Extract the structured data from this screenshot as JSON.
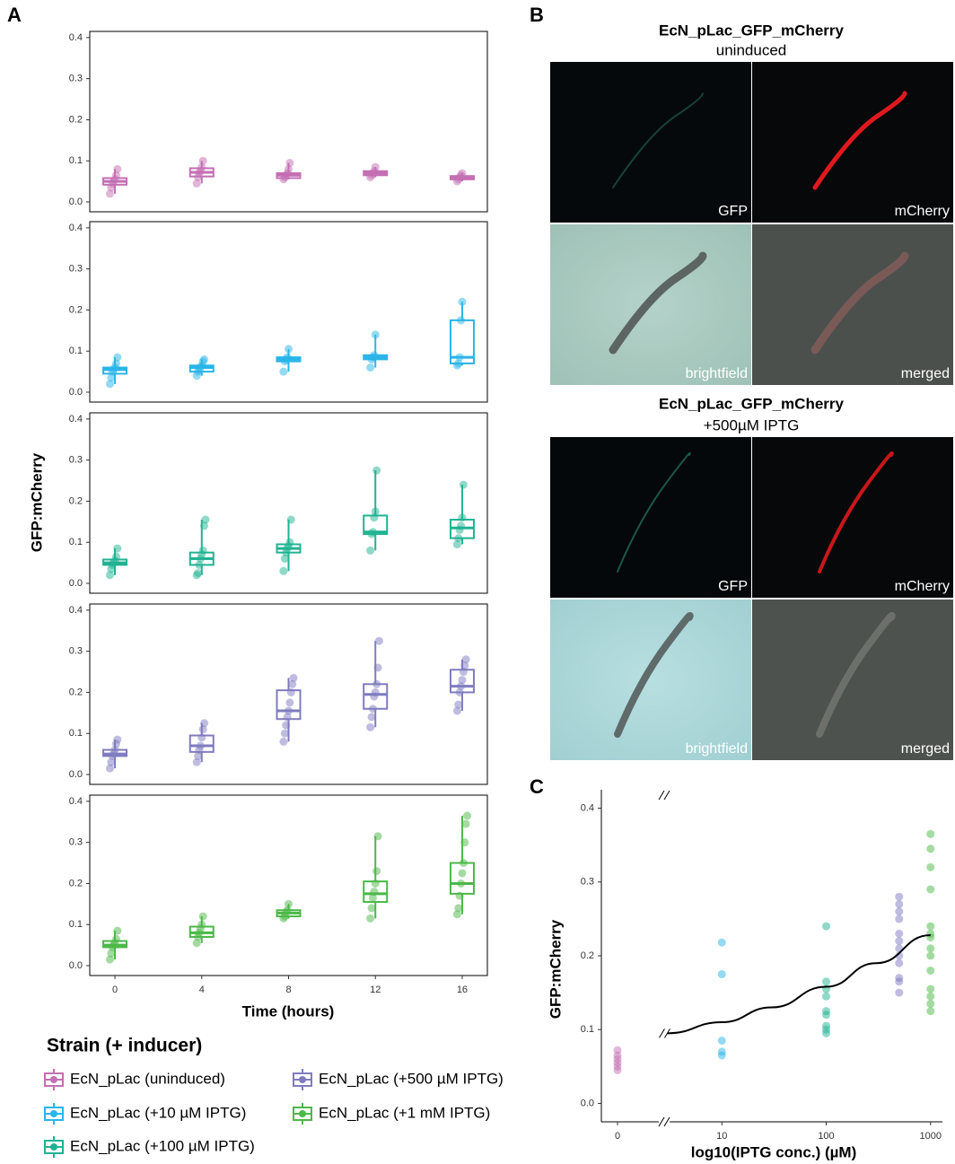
{
  "panel_labels": [
    "A",
    "B",
    "C"
  ],
  "panel_a": {
    "y_label": "GFP:mCherry",
    "x_label": "Time (hours)",
    "legend_title": "Strain (+ inducer)"
  },
  "panel_b": {
    "groups": [
      {
        "title": "EcN_pLac_GFP_mCherry",
        "subtitle": "uninduced",
        "channels": [
          "GFP",
          "mCherry",
          "brightfield",
          "merged"
        ]
      },
      {
        "title": "EcN_pLac_GFP_mCherry",
        "subtitle": "+500µM IPTG",
        "channels": [
          "GFP",
          "mCherry",
          "brightfield",
          "merged"
        ]
      }
    ]
  },
  "chart_data": [
    {
      "type": "box",
      "x": [
        0,
        4,
        8,
        12,
        16
      ],
      "xlim": [
        -1.16,
        17.16
      ],
      "ylim": [
        -0.024,
        0.415
      ],
      "yticks": [
        {
          "value": 0,
          "label": "0.0"
        },
        0.1,
        0.2,
        0.3,
        0.4
      ],
      "series": [
        {
          "name": "EcN_pLac (uninduced)",
          "color": "#c46fb3",
          "boxes": [
            {
              "low": 0.02,
              "q1": 0.042,
              "median": 0.05,
              "q3": 0.058,
              "high": 0.08
            },
            {
              "low": 0.045,
              "q1": 0.062,
              "median": 0.072,
              "q3": 0.082,
              "high": 0.1
            },
            {
              "low": 0.055,
              "q1": 0.058,
              "median": 0.065,
              "q3": 0.07,
              "high": 0.095
            },
            {
              "low": 0.06,
              "q1": 0.065,
              "median": 0.07,
              "q3": 0.075,
              "high": 0.085
            },
            {
              "low": 0.05,
              "q1": 0.055,
              "median": 0.06,
              "q3": 0.063,
              "high": 0.07
            }
          ],
          "points": [
            [
              0.02,
              0.035,
              0.045,
              0.05,
              0.055,
              0.065,
              0.08
            ],
            [
              0.045,
              0.06,
              0.07,
              0.075,
              0.085,
              0.1
            ],
            [
              0.055,
              0.06,
              0.065,
              0.07,
              0.08,
              0.095
            ],
            [
              0.06,
              0.065,
              0.07,
              0.075,
              0.085
            ],
            [
              0.05,
              0.055,
              0.06,
              0.065,
              0.07
            ]
          ]
        }
      ]
    },
    {
      "type": "box",
      "x": [
        0,
        4,
        8,
        12,
        16
      ],
      "xlim": [
        -1.16,
        17.16
      ],
      "ylim": [
        -0.024,
        0.415
      ],
      "yticks": [
        {
          "value": 0,
          "label": "0.0"
        },
        0.1,
        0.2,
        0.3,
        0.4
      ],
      "series": [
        {
          "name": "EcN_pLac (+10 µM IPTG)",
          "color": "#2ab5e8",
          "boxes": [
            {
              "low": 0.02,
              "q1": 0.045,
              "median": 0.055,
              "q3": 0.06,
              "high": 0.085
            },
            {
              "low": 0.04,
              "q1": 0.05,
              "median": 0.06,
              "q3": 0.065,
              "high": 0.08
            },
            {
              "low": 0.05,
              "q1": 0.075,
              "median": 0.08,
              "q3": 0.085,
              "high": 0.105
            },
            {
              "low": 0.06,
              "q1": 0.08,
              "median": 0.085,
              "q3": 0.09,
              "high": 0.14
            },
            {
              "low": 0.065,
              "q1": 0.07,
              "median": 0.085,
              "q3": 0.175,
              "high": 0.22
            }
          ],
          "points": [
            [
              0.02,
              0.035,
              0.05,
              0.055,
              0.06,
              0.07,
              0.085
            ],
            [
              0.04,
              0.05,
              0.055,
              0.06,
              0.065,
              0.075,
              0.08
            ],
            [
              0.05,
              0.075,
              0.08,
              0.085,
              0.105
            ],
            [
              0.06,
              0.08,
              0.085,
              0.09,
              0.14
            ],
            [
              0.065,
              0.07,
              0.085,
              0.175,
              0.22
            ]
          ]
        }
      ]
    },
    {
      "type": "box",
      "x": [
        0,
        4,
        8,
        12,
        16
      ],
      "xlim": [
        -1.16,
        17.16
      ],
      "ylim": [
        -0.024,
        0.415
      ],
      "yticks": [
        {
          "value": 0,
          "label": "0.0"
        },
        0.1,
        0.2,
        0.3,
        0.4
      ],
      "series": [
        {
          "name": "EcN_pLac (+100 µM IPTG)",
          "color": "#20b392",
          "boxes": [
            {
              "low": 0.02,
              "q1": 0.045,
              "median": 0.05,
              "q3": 0.058,
              "high": 0.085
            },
            {
              "low": 0.02,
              "q1": 0.045,
              "median": 0.06,
              "q3": 0.075,
              "high": 0.155
            },
            {
              "low": 0.03,
              "q1": 0.075,
              "median": 0.085,
              "q3": 0.095,
              "high": 0.155
            },
            {
              "low": 0.08,
              "q1": 0.12,
              "median": 0.125,
              "q3": 0.165,
              "high": 0.275
            },
            {
              "low": 0.095,
              "q1": 0.11,
              "median": 0.135,
              "q3": 0.155,
              "high": 0.24
            }
          ],
          "points": [
            [
              0.02,
              0.035,
              0.045,
              0.05,
              0.055,
              0.065,
              0.085
            ],
            [
              0.02,
              0.025,
              0.045,
              0.06,
              0.07,
              0.08,
              0.14,
              0.155
            ],
            [
              0.03,
              0.06,
              0.075,
              0.085,
              0.09,
              0.1,
              0.155
            ],
            [
              0.08,
              0.12,
              0.125,
              0.16,
              0.175,
              0.275
            ],
            [
              0.095,
              0.11,
              0.13,
              0.14,
              0.16,
              0.24
            ]
          ]
        }
      ]
    },
    {
      "type": "box",
      "x": [
        0,
        4,
        8,
        12,
        16
      ],
      "xlim": [
        -1.16,
        17.16
      ],
      "ylim": [
        -0.024,
        0.415
      ],
      "yticks": [
        {
          "value": 0,
          "label": "0.0"
        },
        0.1,
        0.2,
        0.3,
        0.4
      ],
      "series": [
        {
          "name": "EcN_pLac (+500 µM IPTG)",
          "color": "#7f7cbf",
          "boxes": [
            {
              "low": 0.015,
              "q1": 0.045,
              "median": 0.05,
              "q3": 0.06,
              "high": 0.085
            },
            {
              "low": 0.03,
              "q1": 0.055,
              "median": 0.07,
              "q3": 0.095,
              "high": 0.125
            },
            {
              "low": 0.08,
              "q1": 0.135,
              "median": 0.155,
              "q3": 0.205,
              "high": 0.235
            },
            {
              "low": 0.115,
              "q1": 0.16,
              "median": 0.195,
              "q3": 0.22,
              "high": 0.325
            },
            {
              "low": 0.155,
              "q1": 0.2,
              "median": 0.215,
              "q3": 0.255,
              "high": 0.28
            }
          ],
          "points": [
            [
              0.015,
              0.03,
              0.045,
              0.05,
              0.06,
              0.075,
              0.085
            ],
            [
              0.03,
              0.045,
              0.06,
              0.07,
              0.09,
              0.11,
              0.125
            ],
            [
              0.08,
              0.1,
              0.12,
              0.14,
              0.155,
              0.175,
              0.2,
              0.22,
              0.235
            ],
            [
              0.115,
              0.14,
              0.16,
              0.19,
              0.2,
              0.22,
              0.26,
              0.325
            ],
            [
              0.155,
              0.17,
              0.2,
              0.215,
              0.23,
              0.25,
              0.265,
              0.28
            ]
          ]
        }
      ]
    },
    {
      "type": "box",
      "x": [
        0,
        4,
        8,
        12,
        16
      ],
      "xlim": [
        -1.16,
        17.16
      ],
      "ylim": [
        -0.024,
        0.415
      ],
      "yticks": [
        {
          "value": 0,
          "label": "0.0"
        },
        0.1,
        0.2,
        0.3,
        0.4
      ],
      "xticks": [
        0,
        4,
        8,
        12,
        16
      ],
      "series": [
        {
          "name": "EcN_pLac (+1 mM IPTG)",
          "color": "#4cb848",
          "boxes": [
            {
              "low": 0.015,
              "q1": 0.045,
              "median": 0.05,
              "q3": 0.06,
              "high": 0.085
            },
            {
              "low": 0.055,
              "q1": 0.07,
              "median": 0.08,
              "q3": 0.095,
              "high": 0.12
            },
            {
              "low": 0.115,
              "q1": 0.12,
              "median": 0.128,
              "q3": 0.135,
              "high": 0.15
            },
            {
              "low": 0.115,
              "q1": 0.155,
              "median": 0.175,
              "q3": 0.205,
              "high": 0.315
            },
            {
              "low": 0.125,
              "q1": 0.175,
              "median": 0.2,
              "q3": 0.25,
              "high": 0.365
            }
          ],
          "points": [
            [
              0.015,
              0.03,
              0.045,
              0.05,
              0.055,
              0.065,
              0.085
            ],
            [
              0.055,
              0.07,
              0.08,
              0.09,
              0.1,
              0.12
            ],
            [
              0.115,
              0.12,
              0.13,
              0.135,
              0.15
            ],
            [
              0.115,
              0.14,
              0.165,
              0.18,
              0.2,
              0.23,
              0.315
            ],
            [
              0.125,
              0.14,
              0.17,
              0.2,
              0.225,
              0.25,
              0.3,
              0.345,
              0.365
            ]
          ]
        }
      ]
    },
    {
      "type": "scatter",
      "x_label": "log10(IPTG conc.) (µM)",
      "y_label": "GFP:mCherry",
      "log_x": true,
      "axis_break": true,
      "xlim": [
        0.7,
        1300
      ],
      "ylim": [
        -0.025,
        0.425
      ],
      "xticks": [
        0,
        10,
        100,
        1000
      ],
      "yticks": [
        {
          "value": 0,
          "label": "0.0"
        },
        0.1,
        0.2,
        0.3,
        0.4
      ],
      "series": [
        {
          "color": "#c46fb3",
          "x": [
            0,
            0,
            0,
            0,
            0,
            0
          ],
          "values": [
            0.045,
            0.05,
            0.055,
            0.06,
            0.065,
            0.072
          ]
        },
        {
          "color": "#2ab5e8",
          "x": [
            10,
            10,
            10,
            10,
            10
          ],
          "values": [
            0.065,
            0.07,
            0.085,
            0.175,
            0.218
          ]
        },
        {
          "color": "#20b392",
          "x": [
            100,
            100,
            100,
            100,
            100,
            100,
            100,
            100,
            100
          ],
          "values": [
            0.095,
            0.1,
            0.105,
            0.12,
            0.125,
            0.145,
            0.155,
            0.165,
            0.24
          ]
        },
        {
          "color": "#7f7cbf",
          "x": [
            500,
            500,
            500,
            500,
            500,
            500,
            500,
            500,
            500,
            500,
            500,
            500
          ],
          "values": [
            0.15,
            0.165,
            0.17,
            0.19,
            0.2,
            0.21,
            0.22,
            0.23,
            0.25,
            0.26,
            0.27,
            0.28
          ]
        },
        {
          "color": "#4cb848",
          "x": [
            1000,
            1000,
            1000,
            1000,
            1000,
            1000,
            1000,
            1000,
            1000,
            1000,
            1000,
            1000,
            1000,
            1000
          ],
          "values": [
            0.125,
            0.135,
            0.145,
            0.155,
            0.18,
            0.2,
            0.21,
            0.225,
            0.23,
            0.24,
            0.29,
            0.32,
            0.345,
            0.365
          ]
        }
      ],
      "fit": {
        "color": "#000000",
        "x": [
          3,
          10,
          30,
          100,
          300,
          1000
        ],
        "values": [
          0.095,
          0.11,
          0.13,
          0.158,
          0.19,
          0.228
        ]
      }
    }
  ]
}
